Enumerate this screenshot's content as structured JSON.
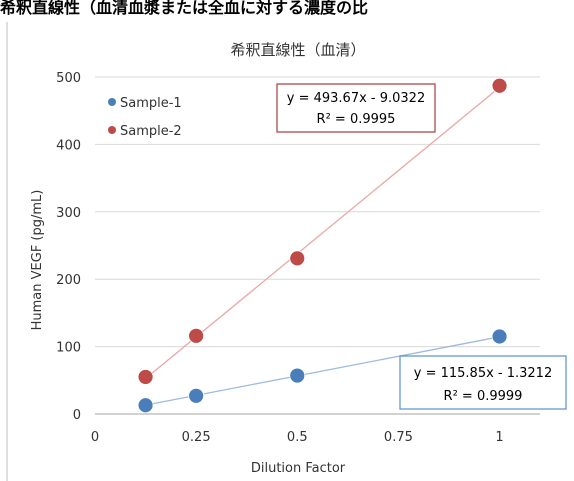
{
  "header": {
    "text": "希釈直線性（血清血漿または全血に対する濃度の比"
  },
  "chart_data": {
    "type": "scatter",
    "title": "希釈直線性（血清）",
    "xlabel": "Dilution Factor",
    "ylabel": "Human VEGF (pg/mL)",
    "xlim": [
      0,
      1.1
    ],
    "ylim": [
      0,
      500
    ],
    "x_ticks": [
      0,
      0.25,
      0.5,
      0.75,
      1
    ],
    "x_tick_labels": [
      "0",
      "0.25",
      "0.5",
      "0.75",
      "1"
    ],
    "y_ticks": [
      0,
      100,
      200,
      300,
      400,
      500
    ],
    "y_tick_labels": [
      "0",
      "100",
      "200",
      "300",
      "400",
      "500"
    ],
    "grid": "horizontal",
    "legend_position": "top-left",
    "series": [
      {
        "name": "Sample-1",
        "color": "#4a7ebb",
        "trend_color": "#9dbbe0",
        "x": [
          0.125,
          0.25,
          0.5,
          1
        ],
        "y": [
          13,
          27,
          57,
          115
        ],
        "trendline": {
          "slope": 115.85,
          "intercept": -1.3212
        },
        "equation": "y = 115.85x - 1.3212",
        "r2": "R² = 0.9999",
        "box_color": "#5a8fcf"
      },
      {
        "name": "Sample-2",
        "color": "#be4b48",
        "trend_color": "#e8a8a6",
        "x": [
          0.125,
          0.25,
          0.5,
          1
        ],
        "y": [
          55,
          116,
          231,
          487
        ],
        "trendline": {
          "slope": 493.67,
          "intercept": -9.0322
        },
        "equation": "y = 493.67x - 9.0322",
        "r2": "R² = 0.9995",
        "box_color": "#a33e3c"
      }
    ]
  }
}
